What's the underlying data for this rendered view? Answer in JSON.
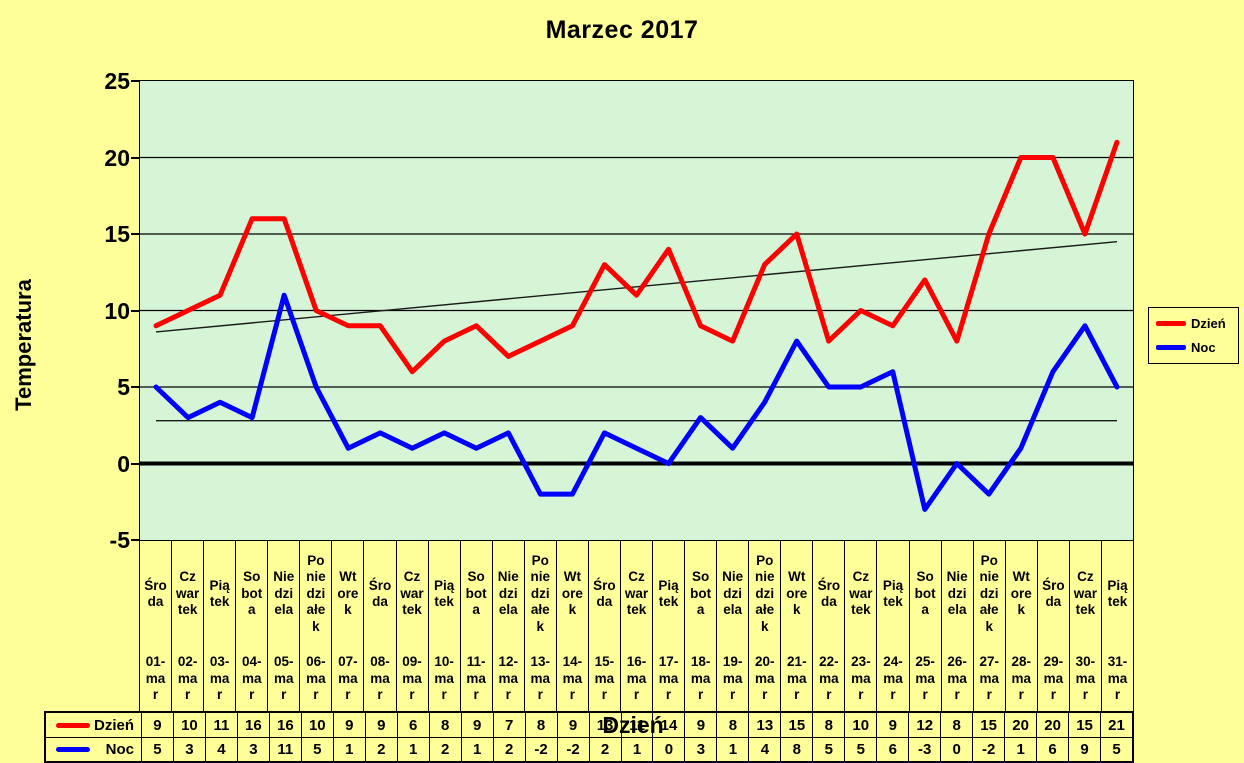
{
  "chart_data": {
    "type": "line",
    "title": "Marzec 2017",
    "xlabel": "Dzień",
    "ylabel": "Temperatura",
    "ylim": [
      -5,
      25
    ],
    "yticks": [
      25,
      20,
      15,
      10,
      5,
      0,
      -5
    ],
    "grid": true,
    "legend_position": "right-outside",
    "categories": [
      "01-mar",
      "02-mar",
      "03-mar",
      "04-mar",
      "05-mar",
      "06-mar",
      "07-mar",
      "08-mar",
      "09-mar",
      "10-mar",
      "11-mar",
      "12-mar",
      "13-mar",
      "14-mar",
      "15-mar",
      "16-mar",
      "17-mar",
      "18-mar",
      "19-mar",
      "20-mar",
      "21-mar",
      "22-mar",
      "23-mar",
      "24-mar",
      "25-mar",
      "26-mar",
      "27-mar",
      "28-mar",
      "29-mar",
      "30-mar",
      "31-mar"
    ],
    "weekdays": [
      "Środa",
      "Czwartek",
      "Piątek",
      "Sobota",
      "Niedziela",
      "Poniedziałek",
      "Wtorek",
      "Środa",
      "Czwartek",
      "Piątek",
      "Sobota",
      "Niedziela",
      "Poniedziałek",
      "Wtorek",
      "Środa",
      "Czwartek",
      "Piątek",
      "Sobota",
      "Niedziela",
      "Poniedziałek",
      "Wtorek",
      "Środa",
      "Czwartek",
      "Piątek",
      "Sobota",
      "Niedziela",
      "Poniedziałek",
      "Wtorek",
      "Środa",
      "Czwartek",
      "Piątek"
    ],
    "weekday_wraps": {
      "Środa": "Śro\nda",
      "Czwartek": "Cz\nwar\ntek",
      "Piątek": "Pią\ntek",
      "Sobota": "So\nbot\na",
      "Niedziela": "Nie\ndzi\nela",
      "Poniedziałek": "Po\nnie\ndzi\nałe\nk",
      "Wtorek": "Wt\nore\nk"
    },
    "series": [
      {
        "name": "Dzień",
        "color": "#FF0000",
        "values": [
          9,
          10,
          11,
          16,
          16,
          10,
          9,
          9,
          6,
          8,
          9,
          7,
          8,
          9,
          13,
          11,
          14,
          9,
          8,
          13,
          15,
          8,
          10,
          9,
          12,
          8,
          15,
          20,
          20,
          15,
          21
        ]
      },
      {
        "name": "Noc",
        "color": "#0000FF",
        "values": [
          5,
          3,
          4,
          3,
          11,
          5,
          1,
          2,
          1,
          2,
          1,
          2,
          -2,
          -2,
          2,
          1,
          0,
          3,
          1,
          4,
          8,
          5,
          5,
          6,
          -3,
          0,
          -2,
          1,
          6,
          9,
          5
        ]
      }
    ],
    "trendlines": [
      {
        "series": "Dzień",
        "color": "#1a1a1a",
        "start_value": 8.6,
        "end_value": 14.5
      },
      {
        "series": "Noc",
        "color": "#1a1a1a",
        "start_value": 2.8,
        "end_value": 2.8
      }
    ]
  },
  "colors": {
    "background": "#FFFF99",
    "plot_background": "#D6F5D6",
    "gridline": "#000000",
    "zero_line": "#000000",
    "text": "#000000"
  }
}
